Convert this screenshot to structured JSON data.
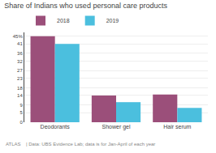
{
  "chart_data": {
    "type": "bar",
    "title": "Share of Indians who used personal care products",
    "categories": [
      "Deodorants",
      "Shower gel",
      "Hair serum"
    ],
    "series": [
      {
        "name": "2018",
        "color": "#9b4f7a",
        "values": [
          45,
          14,
          14.5
        ]
      },
      {
        "name": "2019",
        "color": "#4bbfde",
        "values": [
          41,
          10.5,
          7.5
        ]
      }
    ],
    "ylim": [
      0,
      47
    ],
    "yticks": [
      0,
      5,
      9,
      14,
      18,
      23,
      27,
      32,
      36,
      41,
      {
        "value": 45,
        "label": "45%"
      }
    ],
    "grid": true,
    "legend": "upper left",
    "annotations": [
      "ATLAS",
      "| Data: UBS Evidence Lab; data is for Jan-April of each year"
    ]
  }
}
